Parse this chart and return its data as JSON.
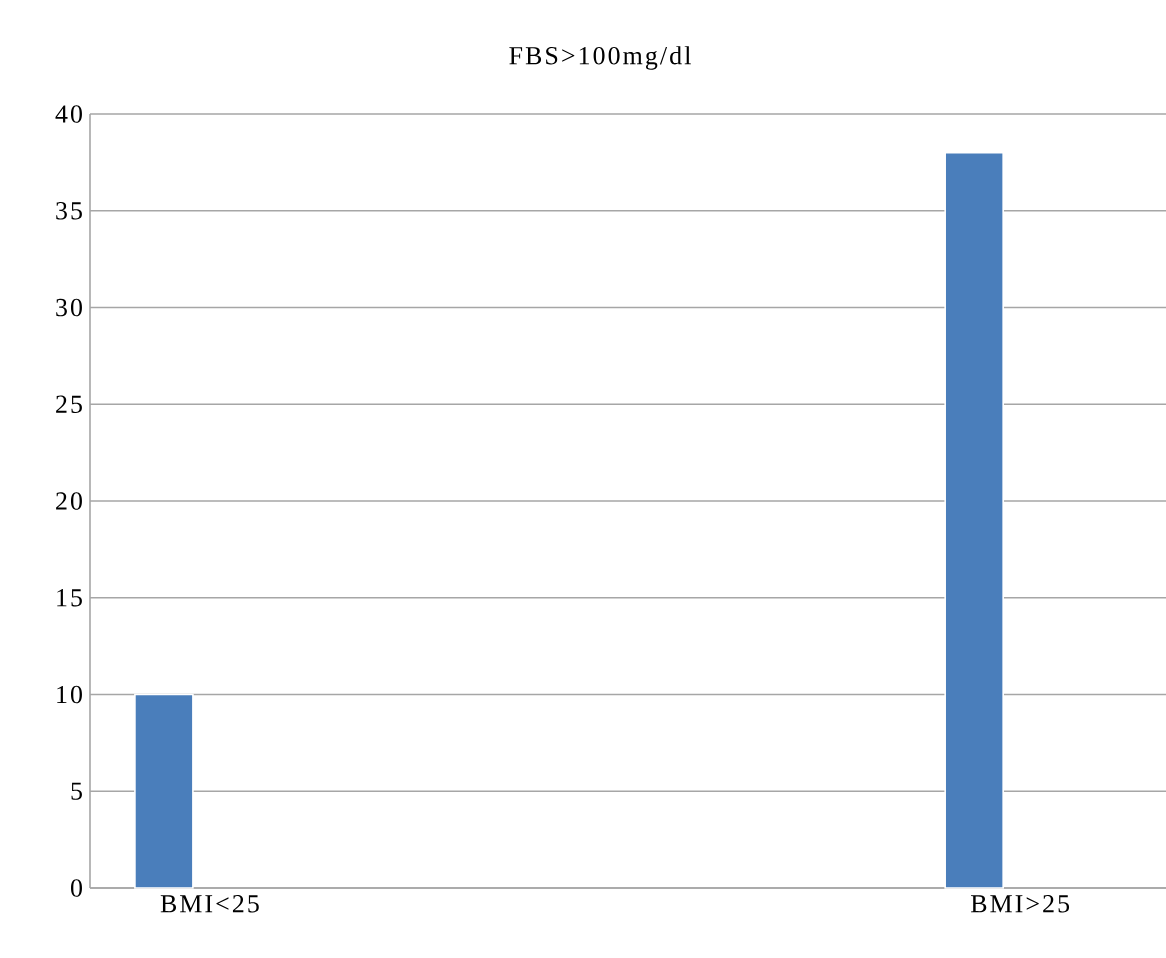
{
  "chart_data": {
    "type": "bar",
    "title": "FBS>100mg/dl",
    "categories": [
      "BMI<25",
      "BMI>25"
    ],
    "values": [
      10,
      38
    ],
    "color": "#4a7ebb",
    "ylim": [
      0,
      40
    ],
    "yticks": [
      0,
      5,
      10,
      15,
      20,
      25,
      30,
      35,
      40
    ],
    "grid": "y"
  }
}
